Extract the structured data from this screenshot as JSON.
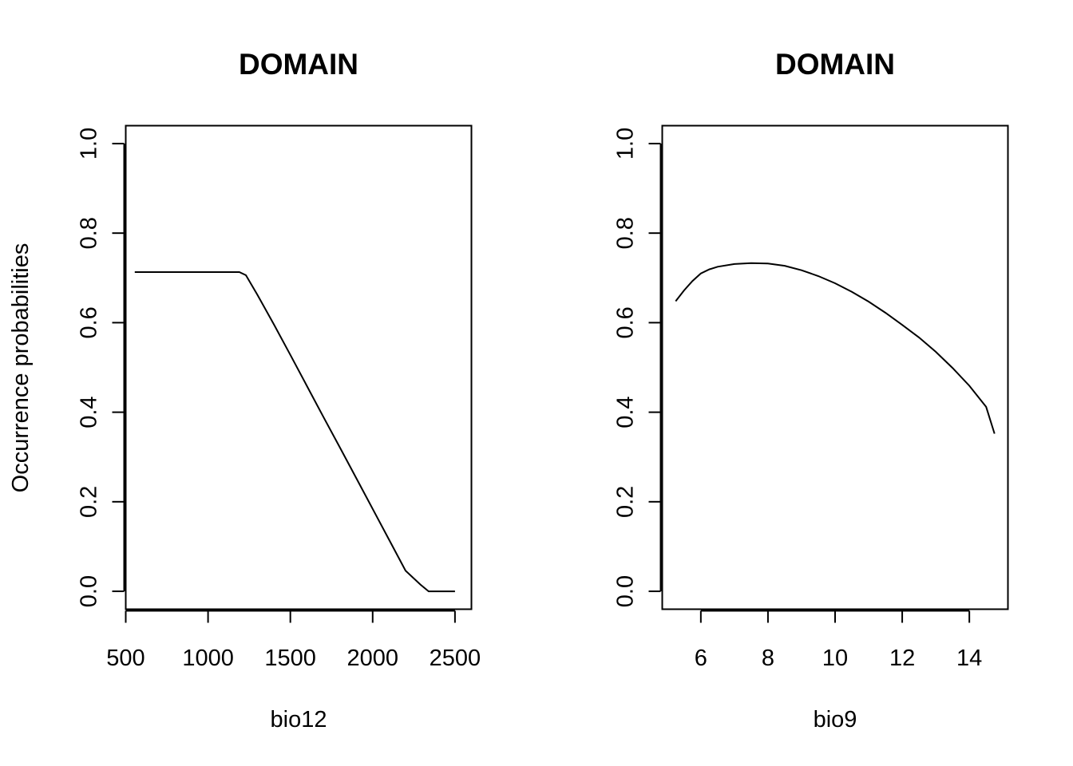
{
  "figure": {
    "background": "#ffffff",
    "line_color": "#000000"
  },
  "chart_data": [
    {
      "type": "line",
      "title": "DOMAIN",
      "xlabel": "bio12",
      "ylabel": "Occurrence probabilities",
      "xlim": [
        500,
        2600
      ],
      "ylim": [
        -0.04,
        1.04
      ],
      "xticks": [
        500,
        1000,
        1500,
        2000,
        2500
      ],
      "xtick_labels": [
        "500",
        "1000",
        "1500",
        "2000",
        "2500"
      ],
      "yticks": [
        0.0,
        0.2,
        0.4,
        0.6,
        0.8,
        1.0
      ],
      "ytick_labels": [
        "0.0",
        "0.2",
        "0.4",
        "0.6",
        "0.8",
        "1.0"
      ],
      "grid": false,
      "series": [
        {
          "x": [
            555,
            700,
            900,
            1100,
            1190,
            1230,
            1300,
            1400,
            1500,
            1600,
            1700,
            1800,
            1900,
            2000,
            2100,
            2200,
            2290,
            2340,
            2400,
            2500
          ],
          "y": [
            0.713,
            0.713,
            0.713,
            0.713,
            0.713,
            0.706,
            0.662,
            0.596,
            0.528,
            0.459,
            0.39,
            0.322,
            0.253,
            0.184,
            0.115,
            0.046,
            0.015,
            0.0,
            0.0,
            0.0
          ]
        }
      ]
    },
    {
      "type": "line",
      "title": "DOMAIN",
      "xlabel": "bio9",
      "ylabel": "",
      "xlim": [
        4.85,
        15.15
      ],
      "ylim": [
        -0.04,
        1.04
      ],
      "xticks": [
        6,
        8,
        10,
        12,
        14
      ],
      "xtick_labels": [
        "6",
        "8",
        "10",
        "12",
        "14"
      ],
      "yticks": [
        0.0,
        0.2,
        0.4,
        0.6,
        0.8,
        1.0
      ],
      "ytick_labels": [
        "0.0",
        "0.2",
        "0.4",
        "0.6",
        "0.8",
        "1.0"
      ],
      "grid": false,
      "series": [
        {
          "x": [
            5.25,
            5.5,
            5.75,
            6.0,
            6.25,
            6.5,
            7.0,
            7.5,
            8.0,
            8.5,
            9.0,
            9.5,
            10.0,
            10.5,
            11.0,
            11.5,
            12.0,
            12.5,
            13.0,
            13.5,
            14.0,
            14.5,
            14.75
          ],
          "y": [
            0.648,
            0.672,
            0.693,
            0.71,
            0.719,
            0.725,
            0.731,
            0.733,
            0.732,
            0.727,
            0.717,
            0.704,
            0.688,
            0.669,
            0.647,
            0.622,
            0.595,
            0.567,
            0.535,
            0.499,
            0.459,
            0.412,
            0.352
          ]
        }
      ]
    }
  ]
}
